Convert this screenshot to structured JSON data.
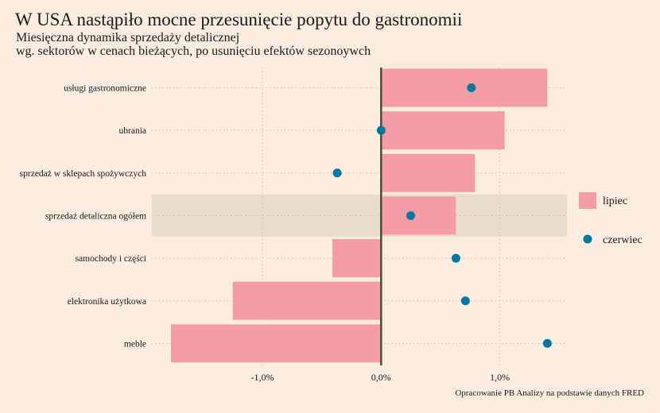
{
  "header": {
    "title": "W USA nastąpiło mocne przesunięcie popytu do gastronomii",
    "subtitle_line1": "Miesięczna dynamika sprzedaży detalicznej",
    "subtitle_line2": "wg. sektorów w cenach bieżących, po usunięciu efektów sezonoywch"
  },
  "caption": "Opracowanie PB Analizy na podstawie danych FRED",
  "colors": {
    "background": "#FAEDE0",
    "bar": "#F59CA9",
    "point": "#0077A1",
    "highlight": "#E8DCCE",
    "zero_line": "#4a4a40",
    "grid": "#c9bfb3"
  },
  "chart_data": {
    "type": "bar",
    "orientation": "horizontal",
    "title": "W USA nastąpiło mocne przesunięcie popytu do gastronomii",
    "subtitle": "Miesięczna dynamika sprzedaży detalicznej wg. sektorów w cenach bieżących, po usunięciu efektów sezonoywch",
    "xlabel": "",
    "ylabel": "",
    "xlim": [
      -1.95,
      1.6
    ],
    "x_ticks": [
      -1.0,
      0.0,
      1.0
    ],
    "x_tick_labels": [
      "-1,0%",
      "0,0%",
      "1,0%"
    ],
    "grid": true,
    "legend_position": "right",
    "highlighted_category": "sprzedaż detaliczna ogółem",
    "categories": [
      "usługi gastronomiczne",
      "ubrania",
      "sprzedaż w sklepach spożywczych",
      "sprzedaż detaliczna ogółem",
      "samochody i części",
      "elektronika użytkowa",
      "meble"
    ],
    "series": [
      {
        "name": "lipiec",
        "mark": "bar",
        "values": [
          1.4,
          1.04,
          0.79,
          0.63,
          -0.41,
          -1.25,
          -1.77
        ]
      },
      {
        "name": "czerwiec",
        "mark": "point",
        "values": [
          0.76,
          0.0,
          -0.37,
          0.25,
          0.63,
          0.71,
          1.4
        ]
      }
    ]
  }
}
